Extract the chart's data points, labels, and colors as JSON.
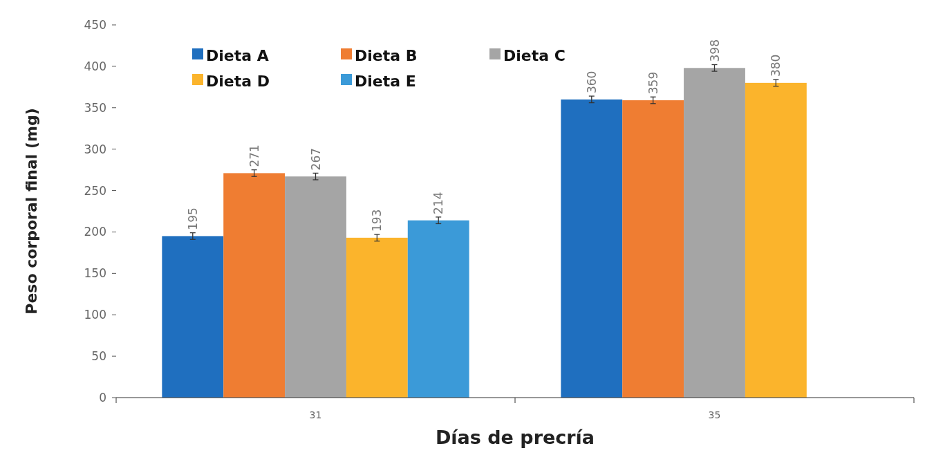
{
  "chart_data": {
    "type": "bar",
    "xlabel": "Días de precría",
    "ylabel": "Peso corporal final (mg)",
    "categories": [
      "31",
      "35"
    ],
    "series": [
      {
        "name": "Dieta A",
        "color": "#1f6fbf",
        "values": [
          195,
          360
        ],
        "errors": [
          4,
          4
        ]
      },
      {
        "name": "Dieta B",
        "color": "#ef7d32",
        "values": [
          271,
          359
        ],
        "errors": [
          4,
          4
        ]
      },
      {
        "name": "Dieta C",
        "color": "#a5a5a5",
        "values": [
          267,
          398
        ],
        "errors": [
          4,
          4
        ]
      },
      {
        "name": "Dieta D",
        "color": "#fbb42c",
        "values": [
          193,
          380
        ],
        "errors": [
          4,
          4
        ]
      },
      {
        "name": "Dieta E",
        "color": "#3b9ad8",
        "values": [
          214,
          null
        ],
        "errors": [
          4,
          null
        ]
      }
    ],
    "ylim": [
      0,
      450
    ],
    "yticks": [
      0,
      50,
      100,
      150,
      200,
      250,
      300,
      350,
      400,
      450
    ],
    "data_labels": true,
    "legend": "top left",
    "grid": false
  }
}
